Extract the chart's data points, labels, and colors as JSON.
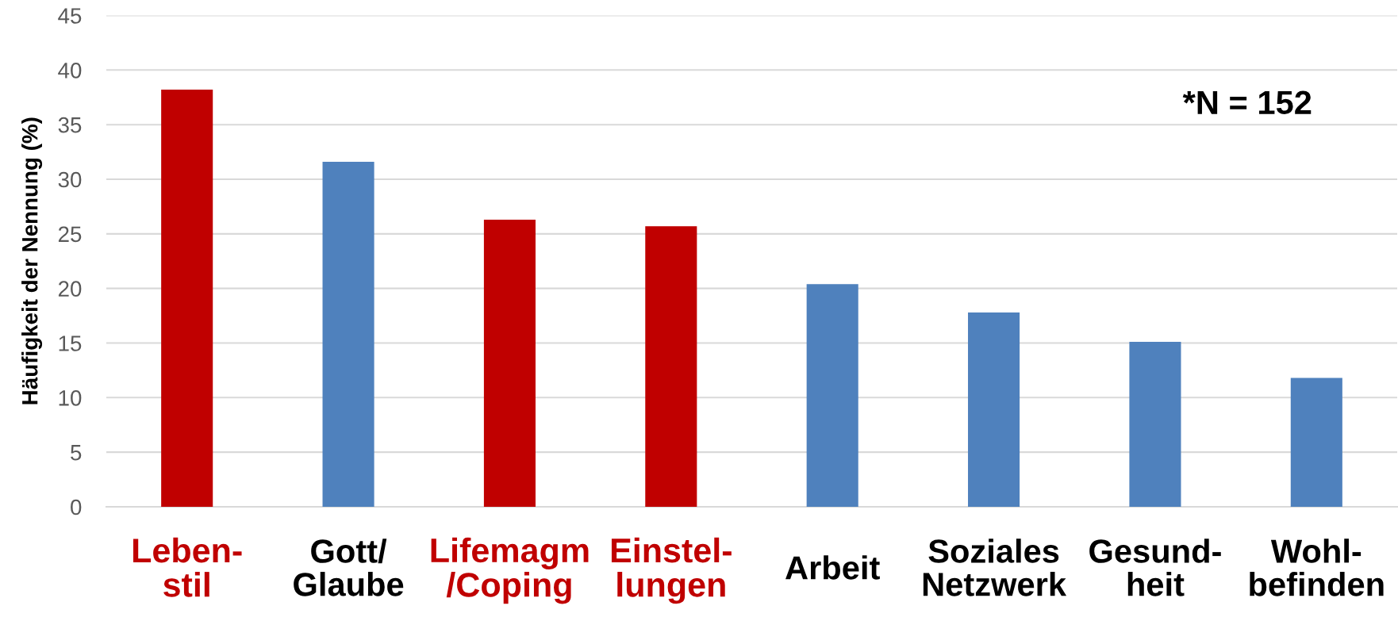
{
  "chart_data": {
    "type": "bar",
    "ylabel": "Häufigkeit der Nennung (%)",
    "categories": [
      "Leben-\nstil",
      "Gott/\nGlaube",
      "Lifemagm\n/Coping",
      "Einstel-\nlungen",
      "Arbeit",
      "Soziales\nNetzwerk",
      "Gesund-\nheit",
      "Wohl-\nbefinden"
    ],
    "values": [
      38.2,
      31.6,
      26.3,
      25.7,
      20.4,
      17.8,
      15.1,
      11.8
    ],
    "colors": [
      "#c00000",
      "#4f81bd",
      "#c00000",
      "#c00000",
      "#4f81bd",
      "#4f81bd",
      "#4f81bd",
      "#4f81bd"
    ],
    "ylim": [
      0,
      45
    ],
    "yticks": [
      0,
      5,
      10,
      15,
      20,
      25,
      30,
      35,
      40,
      45
    ],
    "grid": "y",
    "annotations": [
      "*N = 152"
    ]
  }
}
